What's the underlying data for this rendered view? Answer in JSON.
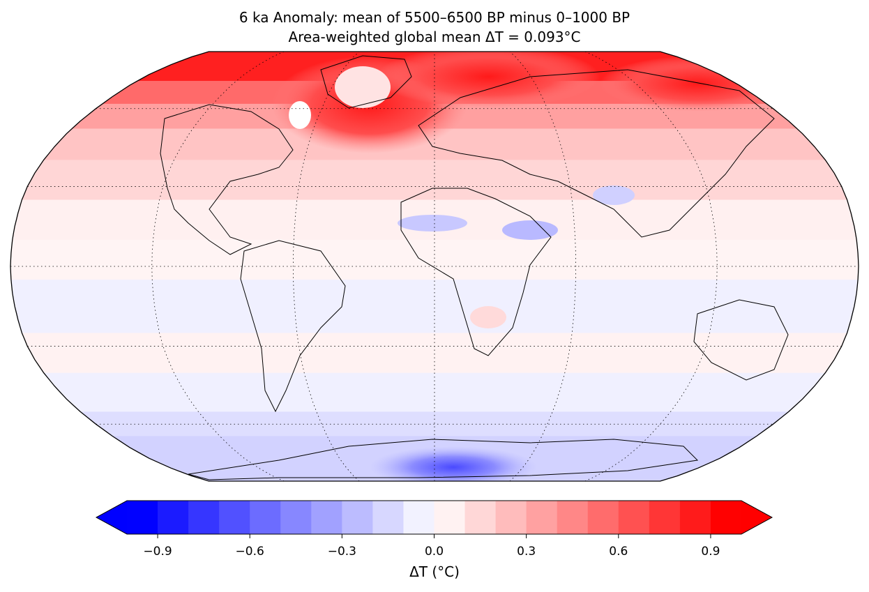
{
  "title": "6 ka Anomaly: mean of 5500–6500 BP minus 0–1000 BP",
  "subtitle": "Area-weighted global mean ΔT = 0.093°C",
  "map": {
    "projection": "Robinson",
    "graticule": "dotted",
    "coastlines": true,
    "field": "surface temperature anomaly"
  },
  "colorbar": {
    "label": "ΔT (°C)",
    "min": -1.0,
    "max": 1.0,
    "step": 0.1,
    "extend": "both",
    "ticks": [
      -0.9,
      -0.6,
      -0.3,
      0.0,
      0.3,
      0.6,
      0.9
    ],
    "tick_labels": [
      "−0.9",
      "−0.6",
      "−0.3",
      "0.0",
      "0.3",
      "0.6",
      "0.9"
    ],
    "colormap": "bwr",
    "low_color": "#0000ff",
    "mid_color": "#ffffff",
    "high_color": "#ff0000"
  }
}
